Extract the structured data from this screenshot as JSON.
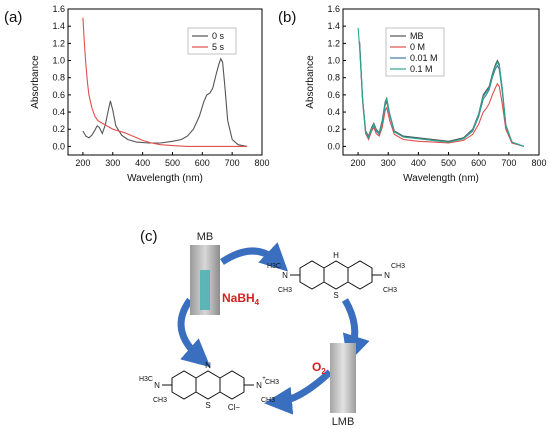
{
  "panels": {
    "a": {
      "label": "(a)"
    },
    "b": {
      "label": "(b)"
    },
    "c": {
      "label": "(c)"
    }
  },
  "chart_data": [
    {
      "type": "line",
      "panel": "(a)",
      "xlabel": "Wavelength (nm)",
      "ylabel": "Absorbance",
      "xlim": [
        150,
        800
      ],
      "ylim": [
        -0.1,
        1.6
      ],
      "xticks": [
        200,
        300,
        400,
        500,
        600,
        700,
        800
      ],
      "yticks": [
        0.0,
        0.2,
        0.4,
        0.6,
        0.8,
        1.0,
        1.2,
        1.4,
        1.6
      ],
      "legend_position": "top-right",
      "series": [
        {
          "name": "0 s",
          "color": "#555555",
          "x": [
            200,
            210,
            220,
            230,
            240,
            248,
            255,
            265,
            275,
            285,
            292,
            300,
            310,
            330,
            350,
            380,
            420,
            460,
            500,
            530,
            550,
            570,
            590,
            605,
            615,
            625,
            635,
            645,
            655,
            662,
            668,
            675,
            685,
            700,
            720,
            750
          ],
          "y": [
            0.18,
            0.12,
            0.1,
            0.13,
            0.19,
            0.24,
            0.22,
            0.15,
            0.25,
            0.42,
            0.53,
            0.42,
            0.24,
            0.13,
            0.08,
            0.05,
            0.04,
            0.04,
            0.06,
            0.08,
            0.12,
            0.2,
            0.35,
            0.52,
            0.6,
            0.62,
            0.68,
            0.82,
            0.95,
            1.02,
            0.98,
            0.72,
            0.3,
            0.08,
            0.02,
            0.0
          ]
        },
        {
          "name": "5 s",
          "color": "#e0504d",
          "x": [
            200,
            205,
            210,
            215,
            220,
            230,
            240,
            250,
            260,
            270,
            280,
            290,
            300,
            320,
            340,
            360,
            380,
            400,
            430,
            460,
            500,
            550,
            600,
            650,
            700,
            750
          ],
          "y": [
            1.5,
            1.2,
            0.95,
            0.75,
            0.6,
            0.45,
            0.35,
            0.3,
            0.28,
            0.26,
            0.24,
            0.22,
            0.2,
            0.18,
            0.16,
            0.13,
            0.1,
            0.07,
            0.04,
            0.02,
            0.01,
            0.0,
            0.0,
            0.0,
            0.0,
            0.0
          ]
        }
      ]
    },
    {
      "type": "line",
      "panel": "(b)",
      "xlabel": "Wavelength (nm)",
      "ylabel": "Absorbance",
      "xlim": [
        150,
        800
      ],
      "ylim": [
        -0.1,
        1.6
      ],
      "xticks": [
        200,
        300,
        400,
        500,
        600,
        700,
        800
      ],
      "yticks": [
        0.0,
        0.2,
        0.4,
        0.6,
        0.8,
        1.0,
        1.2,
        1.4,
        1.6
      ],
      "legend_position": "top-left",
      "series": [
        {
          "name": "MB",
          "color": "#555555",
          "x": [
            205,
            215,
            225,
            235,
            245,
            252,
            260,
            270,
            280,
            290,
            295,
            305,
            320,
            350,
            400,
            450,
            500,
            550,
            580,
            600,
            615,
            625,
            635,
            645,
            655,
            662,
            668,
            678,
            690,
            710,
            750
          ],
          "y": [
            1.22,
            0.55,
            0.18,
            0.12,
            0.22,
            0.27,
            0.2,
            0.16,
            0.3,
            0.52,
            0.56,
            0.38,
            0.18,
            0.12,
            0.1,
            0.08,
            0.06,
            0.1,
            0.2,
            0.38,
            0.6,
            0.65,
            0.7,
            0.84,
            0.95,
            1.0,
            0.96,
            0.68,
            0.25,
            0.05,
            0.0
          ]
        },
        {
          "name": "0 M",
          "color": "#e0504d",
          "x": [
            205,
            215,
            225,
            235,
            245,
            252,
            260,
            270,
            280,
            290,
            295,
            305,
            320,
            350,
            400,
            450,
            500,
            550,
            580,
            600,
            615,
            625,
            635,
            645,
            655,
            662,
            668,
            678,
            690,
            710,
            750
          ],
          "y": [
            1.2,
            0.52,
            0.15,
            0.08,
            0.18,
            0.22,
            0.15,
            0.12,
            0.22,
            0.42,
            0.45,
            0.3,
            0.14,
            0.08,
            0.06,
            0.05,
            0.04,
            0.07,
            0.14,
            0.26,
            0.4,
            0.44,
            0.5,
            0.6,
            0.68,
            0.73,
            0.7,
            0.5,
            0.2,
            0.04,
            0.0
          ]
        },
        {
          "name": "0.01 M",
          "color": "#3a7ca5",
          "x": [
            205,
            215,
            225,
            235,
            245,
            252,
            260,
            270,
            280,
            290,
            295,
            305,
            320,
            350,
            400,
            450,
            500,
            550,
            580,
            600,
            615,
            625,
            635,
            645,
            655,
            662,
            668,
            678,
            690,
            710,
            750
          ],
          "y": [
            1.2,
            0.55,
            0.17,
            0.1,
            0.2,
            0.25,
            0.18,
            0.14,
            0.27,
            0.48,
            0.52,
            0.36,
            0.17,
            0.11,
            0.09,
            0.07,
            0.05,
            0.09,
            0.18,
            0.35,
            0.55,
            0.6,
            0.66,
            0.8,
            0.9,
            0.94,
            0.9,
            0.64,
            0.24,
            0.05,
            0.0
          ]
        },
        {
          "name": "0.1 M",
          "color": "#2ca58d",
          "x": [
            200,
            205,
            215,
            225,
            235,
            245,
            252,
            260,
            270,
            280,
            290,
            295,
            305,
            320,
            350,
            400,
            450,
            500,
            550,
            580,
            600,
            615,
            625,
            635,
            645,
            655,
            662,
            668,
            678,
            690,
            710,
            750
          ],
          "y": [
            1.38,
            1.15,
            0.55,
            0.17,
            0.11,
            0.21,
            0.26,
            0.19,
            0.15,
            0.28,
            0.5,
            0.55,
            0.37,
            0.17,
            0.11,
            0.09,
            0.07,
            0.05,
            0.09,
            0.19,
            0.37,
            0.58,
            0.63,
            0.68,
            0.82,
            0.93,
            0.98,
            0.94,
            0.67,
            0.25,
            0.05,
            0.0
          ]
        }
      ]
    }
  ],
  "scheme": {
    "mb_label": "MB",
    "lmb_label": "LMB",
    "reagent_1": "NaBH",
    "reagent_1_subscript": "4",
    "reagent_2": "O",
    "reagent_2_subscript": "2",
    "mb_structure": {
      "left_methyl_top": "H3C",
      "left_methyl_bottom": "CH3",
      "left_n": "N",
      "ring_n": "N",
      "ring_s": "S",
      "right_n": "N",
      "right_n_charge": "+",
      "right_methyl_top": "CH3",
      "right_methyl_bottom": "CH3",
      "counterion": "Cl−"
    },
    "lmb_structure": {
      "nh": "H",
      "ring_n": "N",
      "ring_s": "S",
      "left_n": "N",
      "left_methyl_top": "H3C",
      "left_methyl_bottom": "CH3",
      "right_n": "N",
      "right_methyl_top": "CH3",
      "right_methyl_bottom": "CH3"
    },
    "colors": {
      "arrow": "#3a6fc0",
      "reagent": "#d62020",
      "blue_solution": "#4fb3b3"
    }
  }
}
